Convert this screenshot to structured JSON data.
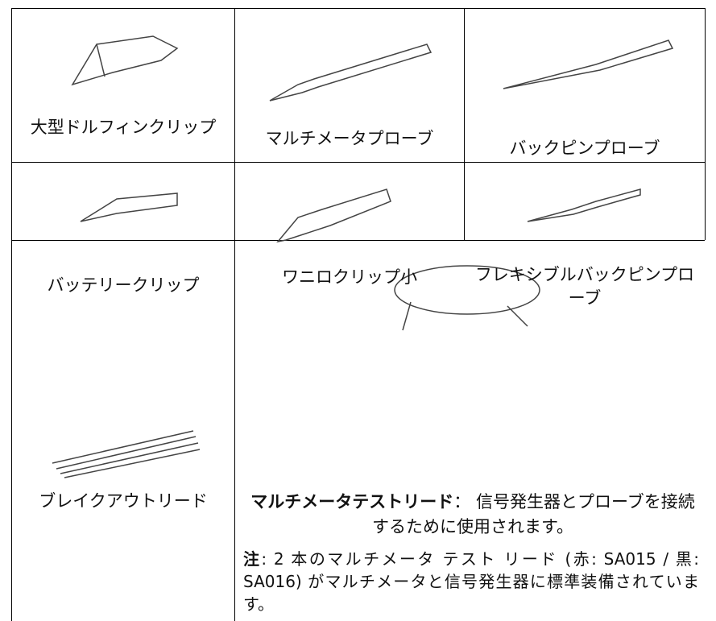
{
  "table": {
    "rows": [
      [
        "大型ドルフィンクリップ",
        "マルチメータプローブ",
        "バックピンプローブ"
      ],
      [
        "バッテリークリップ",
        "ワニロクリップ小",
        "フレキシブルバックピンプローブ"
      ]
    ],
    "last_row": {
      "left": "ブレイクアウトリード",
      "description": {
        "term": "マルチメータテストリード",
        "text": "： 信号発生器とプローブを接続するために使用されます。"
      },
      "note": {
        "label": "注",
        "text": ": 2 本のマルチメータ テスト リード (赤: SA015 / 黒: SA016) がマルチメータと信号発生器に標準装備されています。"
      }
    }
  }
}
